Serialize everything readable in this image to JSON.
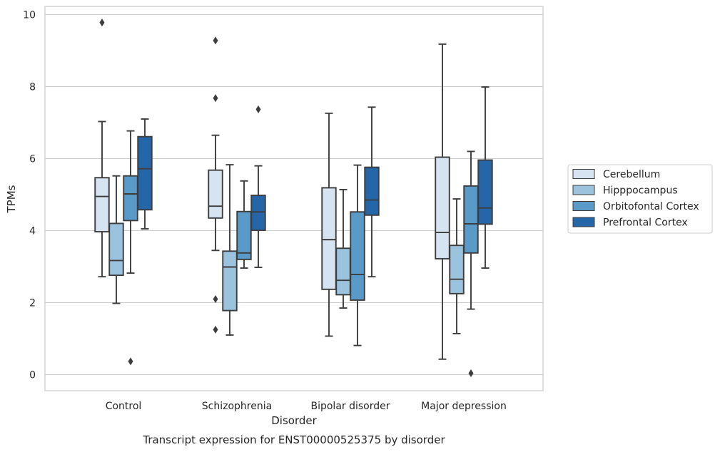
{
  "chart_data": {
    "type": "box",
    "title": "",
    "caption": "Transcript expression for ENST00000525375 by disorder",
    "xlabel": "Disorder",
    "ylabel": "TPMs",
    "ylim": [
      -0.45,
      10.25
    ],
    "yticks": [
      0,
      2,
      4,
      6,
      8,
      10
    ],
    "grid": true,
    "legend_position": "right",
    "categories": [
      "Control",
      "Schizophrenia",
      "Bipolar disorder",
      "Major depression"
    ],
    "series": [
      {
        "name": "Cerebellum",
        "color": "#d6e4f2",
        "boxes": [
          {
            "whisker_low": 2.72,
            "q1": 3.97,
            "median": 4.95,
            "q3": 5.47,
            "whisker_high": 7.03,
            "outliers": [
              9.78
            ]
          },
          {
            "whisker_low": 3.45,
            "q1": 4.35,
            "median": 4.68,
            "q3": 5.68,
            "whisker_high": 6.65,
            "outliers": [
              9.28,
              7.68,
              2.1,
              1.25
            ]
          },
          {
            "whisker_low": 1.07,
            "q1": 2.37,
            "median": 3.75,
            "q3": 5.19,
            "whisker_high": 7.26,
            "outliers": []
          },
          {
            "whisker_low": 0.43,
            "q1": 3.22,
            "median": 3.95,
            "q3": 6.04,
            "whisker_high": 9.18,
            "outliers": []
          }
        ]
      },
      {
        "name": "Hipppocampus",
        "color": "#9bc3de",
        "boxes": [
          {
            "whisker_low": 1.98,
            "q1": 2.76,
            "median": 3.17,
            "q3": 4.2,
            "whisker_high": 5.52,
            "outliers": []
          },
          {
            "whisker_low": 1.1,
            "q1": 1.78,
            "median": 2.99,
            "q3": 3.43,
            "whisker_high": 5.83,
            "outliers": []
          },
          {
            "whisker_low": 1.85,
            "q1": 2.22,
            "median": 2.62,
            "q3": 3.51,
            "whisker_high": 5.14,
            "outliers": []
          },
          {
            "whisker_low": 1.14,
            "q1": 2.25,
            "median": 2.65,
            "q3": 3.59,
            "whisker_high": 4.88,
            "outliers": []
          }
        ]
      },
      {
        "name": "Orbitofontal Cortex",
        "color": "#5a9ac8",
        "boxes": [
          {
            "whisker_low": 2.82,
            "q1": 4.28,
            "median": 5.02,
            "q3": 5.52,
            "whisker_high": 6.77,
            "outliers": [
              0.37
            ]
          },
          {
            "whisker_low": 2.96,
            "q1": 3.2,
            "median": 3.38,
            "q3": 4.53,
            "whisker_high": 5.38,
            "outliers": []
          },
          {
            "whisker_low": 0.81,
            "q1": 2.07,
            "median": 2.78,
            "q3": 4.52,
            "whisker_high": 5.82,
            "outliers": []
          },
          {
            "whisker_low": 1.82,
            "q1": 3.38,
            "median": 4.19,
            "q3": 5.24,
            "whisker_high": 6.2,
            "outliers": [
              0.04
            ]
          }
        ]
      },
      {
        "name": "Prefrontal Cortex",
        "color": "#2566a8",
        "boxes": [
          {
            "whisker_low": 4.05,
            "q1": 4.58,
            "median": 5.72,
            "q3": 6.61,
            "whisker_high": 7.1,
            "outliers": []
          },
          {
            "whisker_low": 2.98,
            "q1": 4.01,
            "median": 4.52,
            "q3": 4.98,
            "whisker_high": 5.8,
            "outliers": [
              7.37
            ]
          },
          {
            "whisker_low": 2.72,
            "q1": 4.43,
            "median": 4.85,
            "q3": 5.76,
            "whisker_high": 7.43,
            "outliers": []
          },
          {
            "whisker_low": 2.96,
            "q1": 4.18,
            "median": 4.63,
            "q3": 5.96,
            "whisker_high": 7.99,
            "outliers": []
          }
        ]
      }
    ]
  }
}
